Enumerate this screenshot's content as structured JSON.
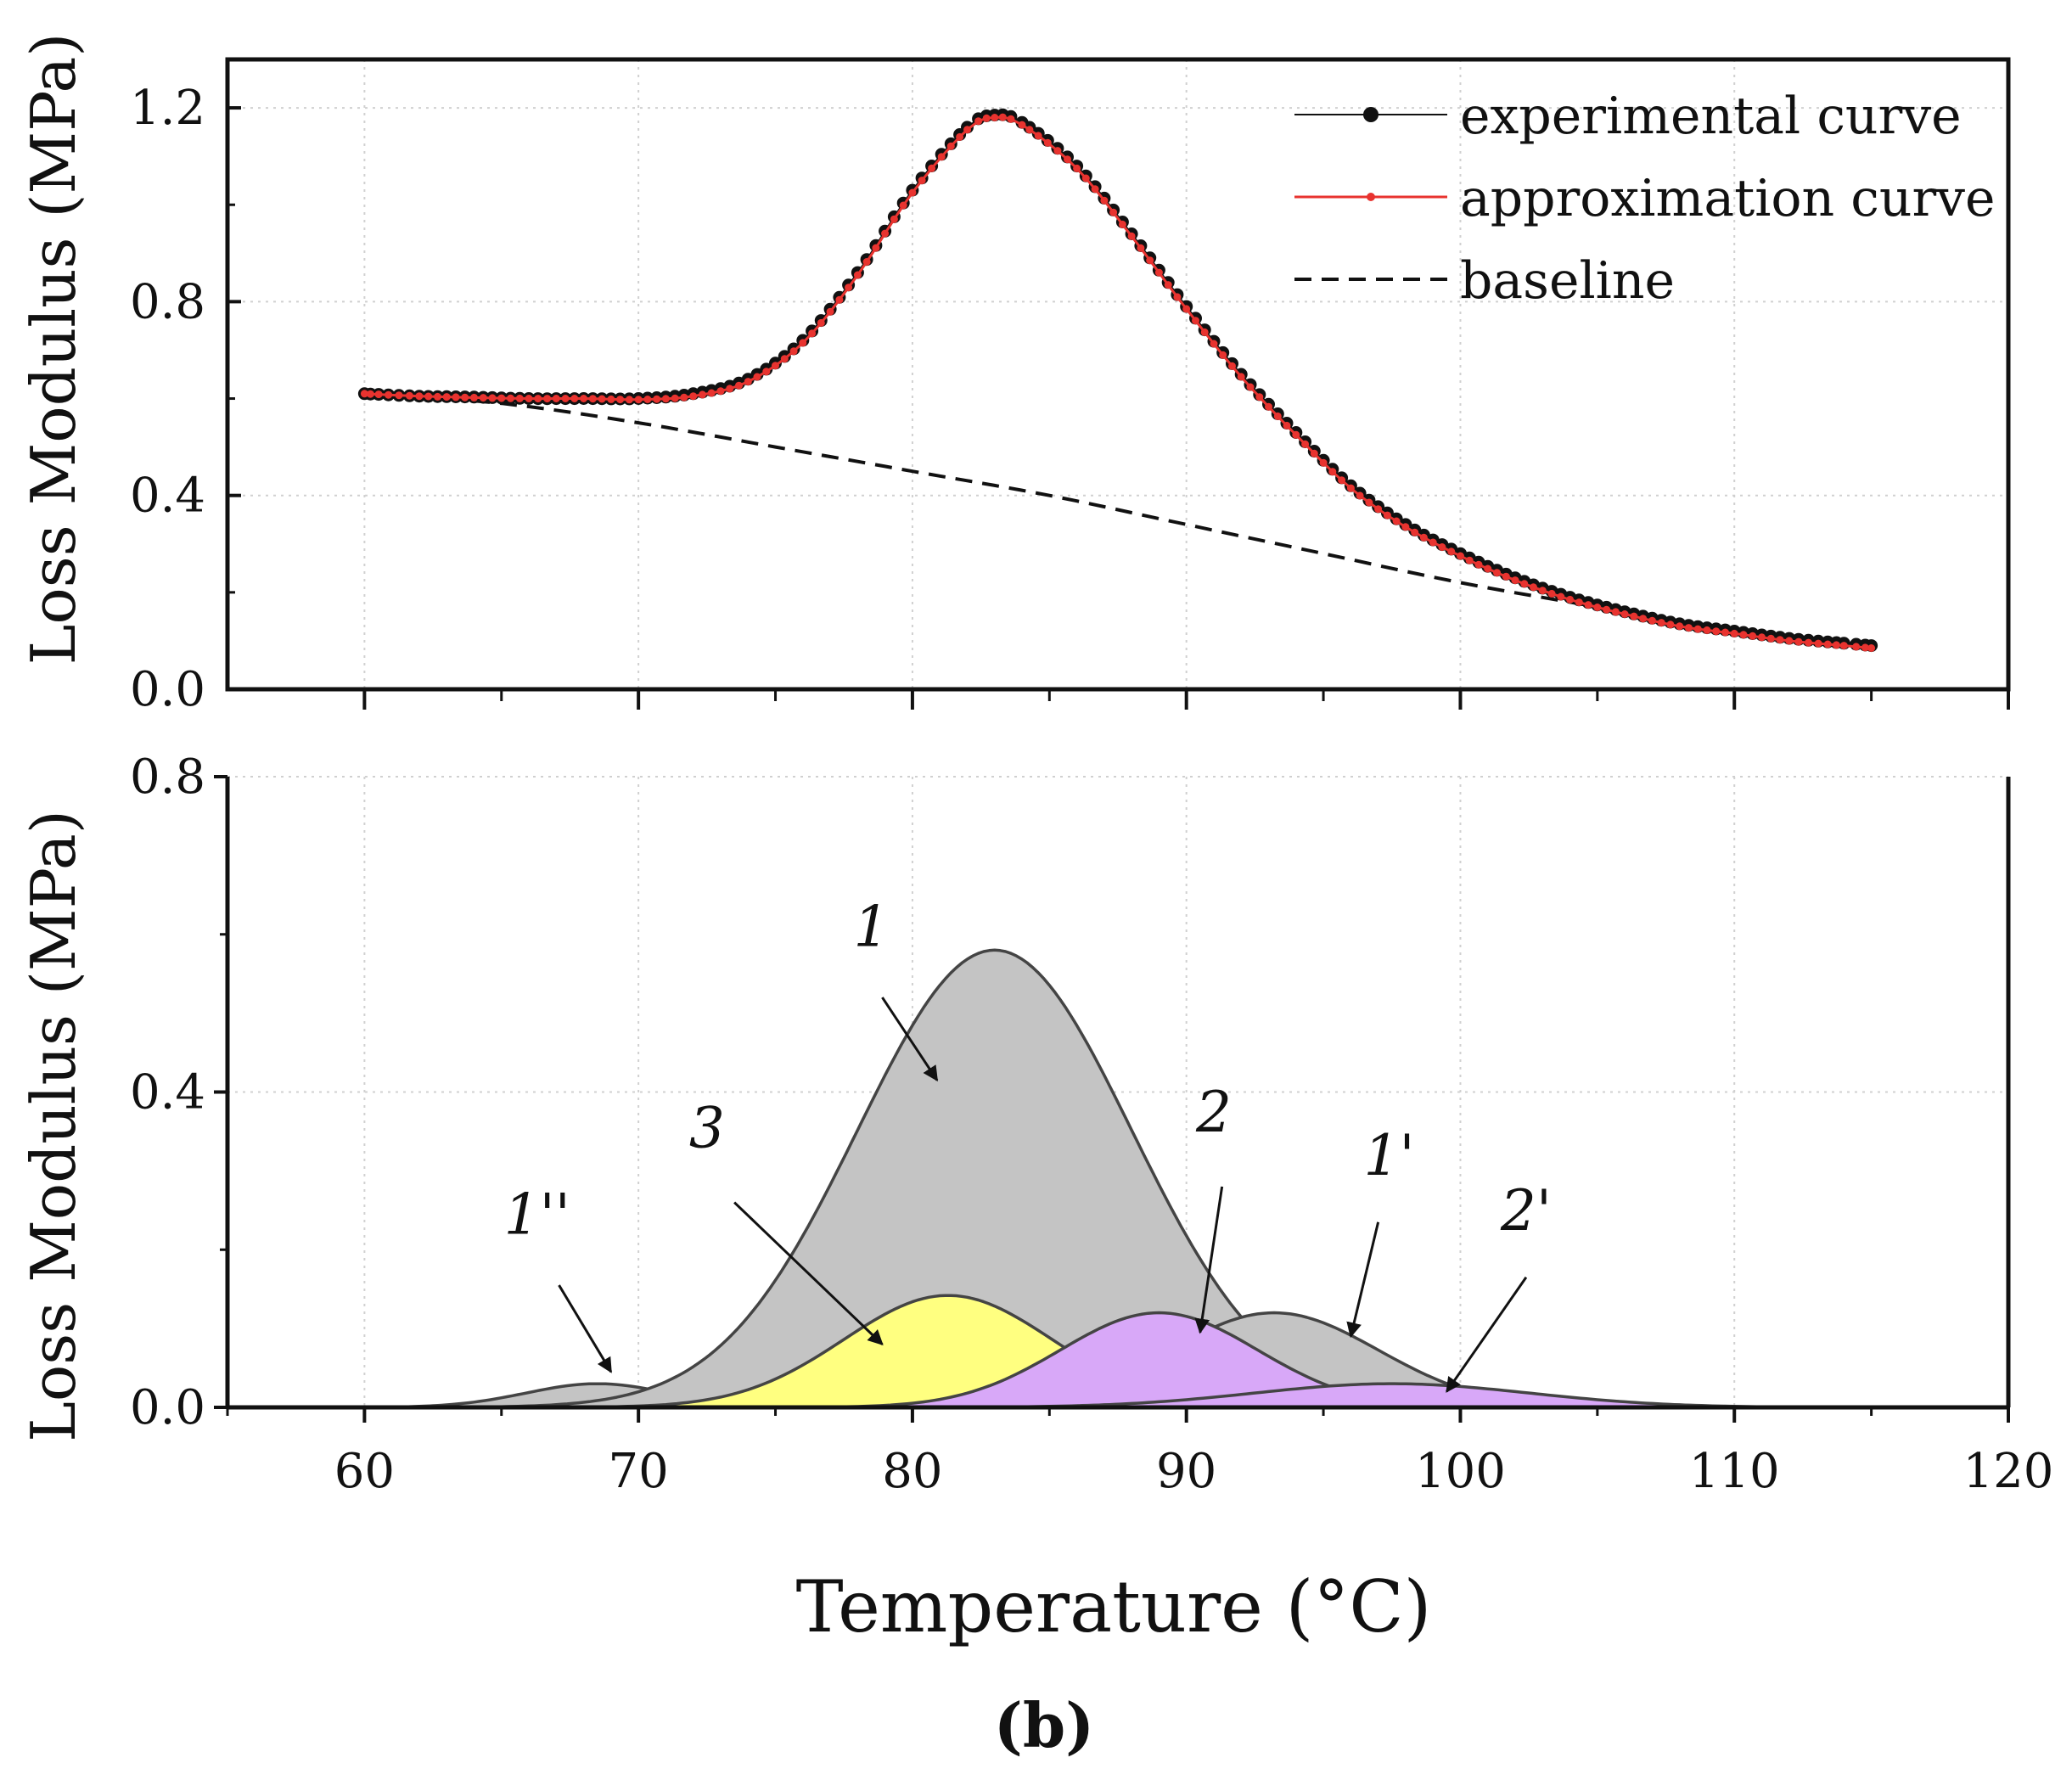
{
  "figure": {
    "x_label": "Temperature (°C)",
    "panel_label": "(b)"
  },
  "chart_data": [
    {
      "type": "line",
      "panel": "top",
      "ylabel": "Loss Modulus (MPa)",
      "xlim": [
        55,
        120
      ],
      "ylim": [
        0,
        1.3
      ],
      "xticks": [
        60,
        70,
        80,
        90,
        100,
        110,
        120
      ],
      "yticks": [
        "0.0",
        "0.4",
        "0.8",
        "1.2"
      ],
      "grid": true,
      "legend_position": "top-right",
      "legend": [
        "experimental curve",
        "approximation curve",
        "baseline"
      ],
      "colors": {
        "experimental": "#111111",
        "approximation": "#e8332f",
        "baseline": "#111111"
      },
      "series": [
        {
          "name": "experimental curve",
          "x": [
            60,
            62,
            64,
            66,
            68,
            70,
            72,
            74,
            76,
            78,
            80,
            82,
            83,
            84,
            86,
            88,
            90,
            92,
            94,
            96,
            98,
            100,
            102,
            104,
            106,
            108,
            110,
            112,
            114,
            115
          ],
          "y": [
            0.61,
            0.605,
            0.603,
            0.6,
            0.6,
            0.6,
            0.61,
            0.64,
            0.72,
            0.86,
            1.03,
            1.16,
            1.185,
            1.17,
            1.08,
            0.94,
            0.79,
            0.65,
            0.53,
            0.42,
            0.34,
            0.28,
            0.23,
            0.19,
            0.16,
            0.135,
            0.12,
            0.105,
            0.095,
            0.09
          ]
        },
        {
          "name": "approximation curve",
          "x": [
            60,
            62,
            64,
            66,
            68,
            70,
            72,
            74,
            76,
            78,
            80,
            82,
            83,
            84,
            86,
            88,
            90,
            92,
            94,
            96,
            98,
            100,
            102,
            104,
            106,
            108,
            110,
            112,
            114,
            115
          ],
          "y": [
            0.61,
            0.605,
            0.602,
            0.6,
            0.6,
            0.598,
            0.605,
            0.635,
            0.715,
            0.855,
            1.025,
            1.155,
            1.18,
            1.165,
            1.075,
            0.935,
            0.785,
            0.645,
            0.525,
            0.415,
            0.335,
            0.275,
            0.225,
            0.185,
            0.155,
            0.13,
            0.115,
            0.1,
            0.09,
            0.085
          ]
        },
        {
          "name": "baseline",
          "x": [
            60,
            65,
            70,
            75,
            80,
            85,
            90,
            95,
            100,
            105,
            110,
            115
          ],
          "y": [
            0.61,
            0.59,
            0.55,
            0.5,
            0.45,
            0.4,
            0.34,
            0.28,
            0.22,
            0.17,
            0.12,
            0.09
          ]
        }
      ]
    },
    {
      "type": "area",
      "panel": "bottom",
      "ylabel": "Loss Modulus (MPa)",
      "xlim": [
        55,
        120
      ],
      "ylim": [
        0,
        0.8
      ],
      "xticks": [
        60,
        70,
        80,
        90,
        100,
        110,
        120
      ],
      "yticks": [
        "0.0",
        "0.4",
        "0.8"
      ],
      "grid": true,
      "colors": {
        "peak1": "#c4c4c4",
        "peak3": "#ffff80",
        "peak2": "#d8a8f8",
        "edge": "#444444"
      },
      "series": [
        {
          "name": "1''",
          "peak_x": 68.5,
          "peak_y": 0.03,
          "width": 2.6,
          "fill": "peak1"
        },
        {
          "name": "1",
          "peak_x": 83.0,
          "peak_y": 0.58,
          "width": 5.0,
          "fill": "peak1"
        },
        {
          "name": "1'",
          "peak_x": 93.2,
          "peak_y": 0.12,
          "width": 3.8,
          "fill": "peak1"
        },
        {
          "name": "3",
          "peak_x": 81.3,
          "peak_y": 0.142,
          "width": 3.8,
          "fill": "peak3"
        },
        {
          "name": "2",
          "peak_x": 89.0,
          "peak_y": 0.12,
          "width": 3.6,
          "fill": "peak2"
        },
        {
          "name": "2'",
          "peak_x": 97.5,
          "peak_y": 0.03,
          "width": 5.0,
          "fill": "peak2"
        }
      ],
      "annotations": [
        {
          "label": "1",
          "tx": 78.5,
          "ty": 0.585,
          "ax1": 78.9,
          "ay1": 0.52,
          "ax2": 80.9,
          "ay2": 0.415
        },
        {
          "label": "3",
          "tx": 72.5,
          "ty": 0.33,
          "ax1": 73.5,
          "ay1": 0.26,
          "ax2": 78.9,
          "ay2": 0.08
        },
        {
          "label": "1''",
          "tx": 66.3,
          "ty": 0.22,
          "ax1": 67.1,
          "ay1": 0.155,
          "ax2": 69.0,
          "ay2": 0.045
        },
        {
          "label": "2",
          "tx": 91.0,
          "ty": 0.35,
          "ax1": 91.3,
          "ay1": 0.28,
          "ax2": 90.5,
          "ay2": 0.095
        },
        {
          "label": "1'",
          "tx": 97.4,
          "ty": 0.295,
          "ax1": 97.0,
          "ay1": 0.235,
          "ax2": 96.0,
          "ay2": 0.09
        },
        {
          "label": "2'",
          "tx": 102.4,
          "ty": 0.225,
          "ax1": 102.4,
          "ay1": 0.165,
          "ax2": 99.5,
          "ay2": 0.02
        }
      ]
    }
  ]
}
